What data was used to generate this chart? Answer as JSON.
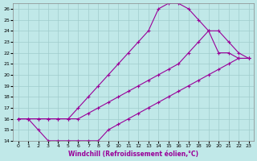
{
  "background_color": "#c0e8e8",
  "grid_color": "#a0cccc",
  "line_color": "#990099",
  "xlabel": "Windchill (Refroidissement éolien,°C)",
  "xlim": [
    -0.5,
    23.5
  ],
  "ylim": [
    14,
    26.5
  ],
  "xticks": [
    0,
    1,
    2,
    3,
    4,
    5,
    6,
    7,
    8,
    9,
    10,
    11,
    12,
    13,
    14,
    15,
    16,
    17,
    18,
    19,
    20,
    21,
    22,
    23
  ],
  "yticks": [
    14,
    15,
    16,
    17,
    18,
    19,
    20,
    21,
    22,
    23,
    24,
    25,
    26
  ],
  "lines": [
    {
      "x": [
        0,
        1,
        2,
        3,
        4,
        5,
        6,
        7,
        8,
        9,
        10,
        11,
        12,
        13,
        14,
        15,
        16,
        17,
        18,
        19,
        20,
        21,
        22,
        23
      ],
      "y": [
        16,
        16,
        16,
        16,
        16,
        16,
        17,
        18,
        19,
        20,
        21,
        22,
        23,
        24,
        26,
        26.5,
        26.5,
        26,
        25,
        24,
        22,
        22,
        21.5,
        21.5
      ]
    },
    {
      "x": [
        0,
        1,
        2,
        3,
        4,
        5,
        6,
        7,
        8,
        9,
        10,
        11,
        12,
        13,
        14,
        15,
        16,
        17,
        18,
        19,
        20,
        21,
        22,
        23
      ],
      "y": [
        16,
        16,
        16,
        16,
        16,
        16,
        16,
        16.5,
        17,
        17.5,
        18,
        18.5,
        19,
        19.5,
        20,
        20.5,
        21,
        22,
        23,
        24,
        24,
        23,
        22,
        21.5
      ]
    },
    {
      "x": [
        0,
        1,
        2,
        3,
        4,
        5,
        6,
        7,
        8,
        9,
        10,
        11,
        12,
        13,
        14,
        15,
        16,
        17,
        18,
        19,
        20,
        21,
        22,
        23
      ],
      "y": [
        16,
        16,
        15,
        14,
        14,
        14,
        14,
        14,
        14,
        15,
        15.5,
        16,
        16.5,
        17,
        17.5,
        18,
        18.5,
        19,
        19.5,
        20,
        20.5,
        21,
        21.5,
        21.5
      ]
    }
  ]
}
